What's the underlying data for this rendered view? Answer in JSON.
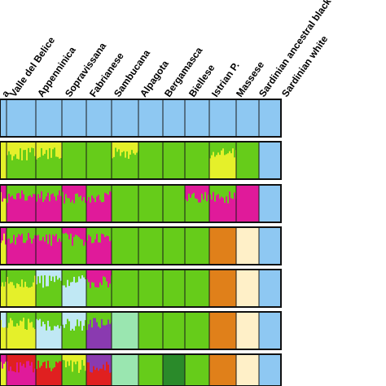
{
  "chart_data": {
    "type": "bar",
    "title": "",
    "xlabel": "",
    "ylabel": "",
    "ylim": [
      0,
      1
    ],
    "categories": [
      "a",
      "Valle del Belice",
      "Appenninica",
      "Sopravissana",
      "Fabrianese",
      "Sambucana",
      "Alpagota",
      "Bergamasca",
      "Biellese",
      "Istrian P.",
      "Massese",
      "Sardinian ancestral black",
      "Sardinian white"
    ],
    "panel_count": 7,
    "cluster_colors": {
      "lightblue": "#8ec8f2",
      "green": "#66cc1a",
      "yellow": "#e5f02a",
      "magenta": "#e01a9a",
      "orange": "#e0801a",
      "cream": "#fff0c8",
      "paleblue": "#c0e8f4",
      "mint": "#9ae6b0",
      "red": "#e02020",
      "purple": "#8a3ab0",
      "darkgreen": "#2a8a2a"
    },
    "panels": [
      {
        "k": 1,
        "segments": [
          [
            "lightblue"
          ],
          [
            "lightblue"
          ],
          [
            "lightblue"
          ],
          [
            "lightblue"
          ],
          [
            "lightblue"
          ],
          [
            "lightblue"
          ],
          [
            "lightblue"
          ],
          [
            "lightblue"
          ],
          [
            "lightblue"
          ],
          [
            "lightblue"
          ],
          [
            "lightblue"
          ],
          [
            "lightblue"
          ],
          [
            "lightblue"
          ]
        ]
      },
      {
        "k": 2,
        "segments": [
          [
            "yellow"
          ],
          [
            "green",
            "yellow"
          ],
          [
            "green",
            "yellow"
          ],
          [
            "green"
          ],
          [
            "green"
          ],
          [
            "green",
            "yellow"
          ],
          [
            "green"
          ],
          [
            "green"
          ],
          [
            "green"
          ],
          [
            "yellow",
            "green"
          ],
          [
            "green"
          ],
          [
            "lightblue"
          ],
          [
            "lightblue"
          ]
        ]
      },
      {
        "k": 3,
        "segments": [
          [
            "yellow",
            "magenta"
          ],
          [
            "magenta",
            "green"
          ],
          [
            "magenta",
            "green"
          ],
          [
            "green",
            "magenta"
          ],
          [
            "magenta",
            "green"
          ],
          [
            "green"
          ],
          [
            "green"
          ],
          [
            "green"
          ],
          [
            "green",
            "magenta"
          ],
          [
            "magenta",
            "green"
          ],
          [
            "magenta"
          ],
          [
            "lightblue"
          ],
          [
            "lightblue"
          ]
        ]
      },
      {
        "k": 4,
        "segments": [
          [
            "yellow",
            "magenta"
          ],
          [
            "magenta",
            "green"
          ],
          [
            "magenta",
            "green"
          ],
          [
            "green",
            "magenta"
          ],
          [
            "magenta",
            "green"
          ],
          [
            "green"
          ],
          [
            "green"
          ],
          [
            "green"
          ],
          [
            "green"
          ],
          [
            "orange"
          ],
          [
            "cream"
          ],
          [
            "lightblue"
          ],
          [
            "lightblue"
          ]
        ]
      },
      {
        "k": 5,
        "segments": [
          [
            "yellow",
            "green"
          ],
          [
            "yellow",
            "green"
          ],
          [
            "green",
            "paleblue"
          ],
          [
            "paleblue",
            "green"
          ],
          [
            "green",
            "magenta"
          ],
          [
            "green"
          ],
          [
            "green"
          ],
          [
            "green"
          ],
          [
            "green"
          ],
          [
            "orange"
          ],
          [
            "cream"
          ],
          [
            "lightblue"
          ],
          [
            "lightblue"
          ]
        ]
      },
      {
        "k": 6,
        "segments": [
          [
            "yellow",
            "paleblue"
          ],
          [
            "yellow",
            "green"
          ],
          [
            "paleblue",
            "green"
          ],
          [
            "green",
            "paleblue"
          ],
          [
            "purple",
            "green"
          ],
          [
            "mint"
          ],
          [
            "green"
          ],
          [
            "green"
          ],
          [
            "green"
          ],
          [
            "orange"
          ],
          [
            "cream"
          ],
          [
            "lightblue"
          ],
          [
            "lightblue"
          ]
        ]
      },
      {
        "k": 7,
        "segments": [
          [
            "yellow",
            "magenta"
          ],
          [
            "magenta",
            "red"
          ],
          [
            "red",
            "green"
          ],
          [
            "green",
            "yellow"
          ],
          [
            "red",
            "purple"
          ],
          [
            "mint"
          ],
          [
            "green"
          ],
          [
            "darkgreen"
          ],
          [
            "green"
          ],
          [
            "orange"
          ],
          [
            "cream"
          ],
          [
            "lightblue"
          ],
          [
            "lightblue"
          ]
        ]
      }
    ]
  }
}
